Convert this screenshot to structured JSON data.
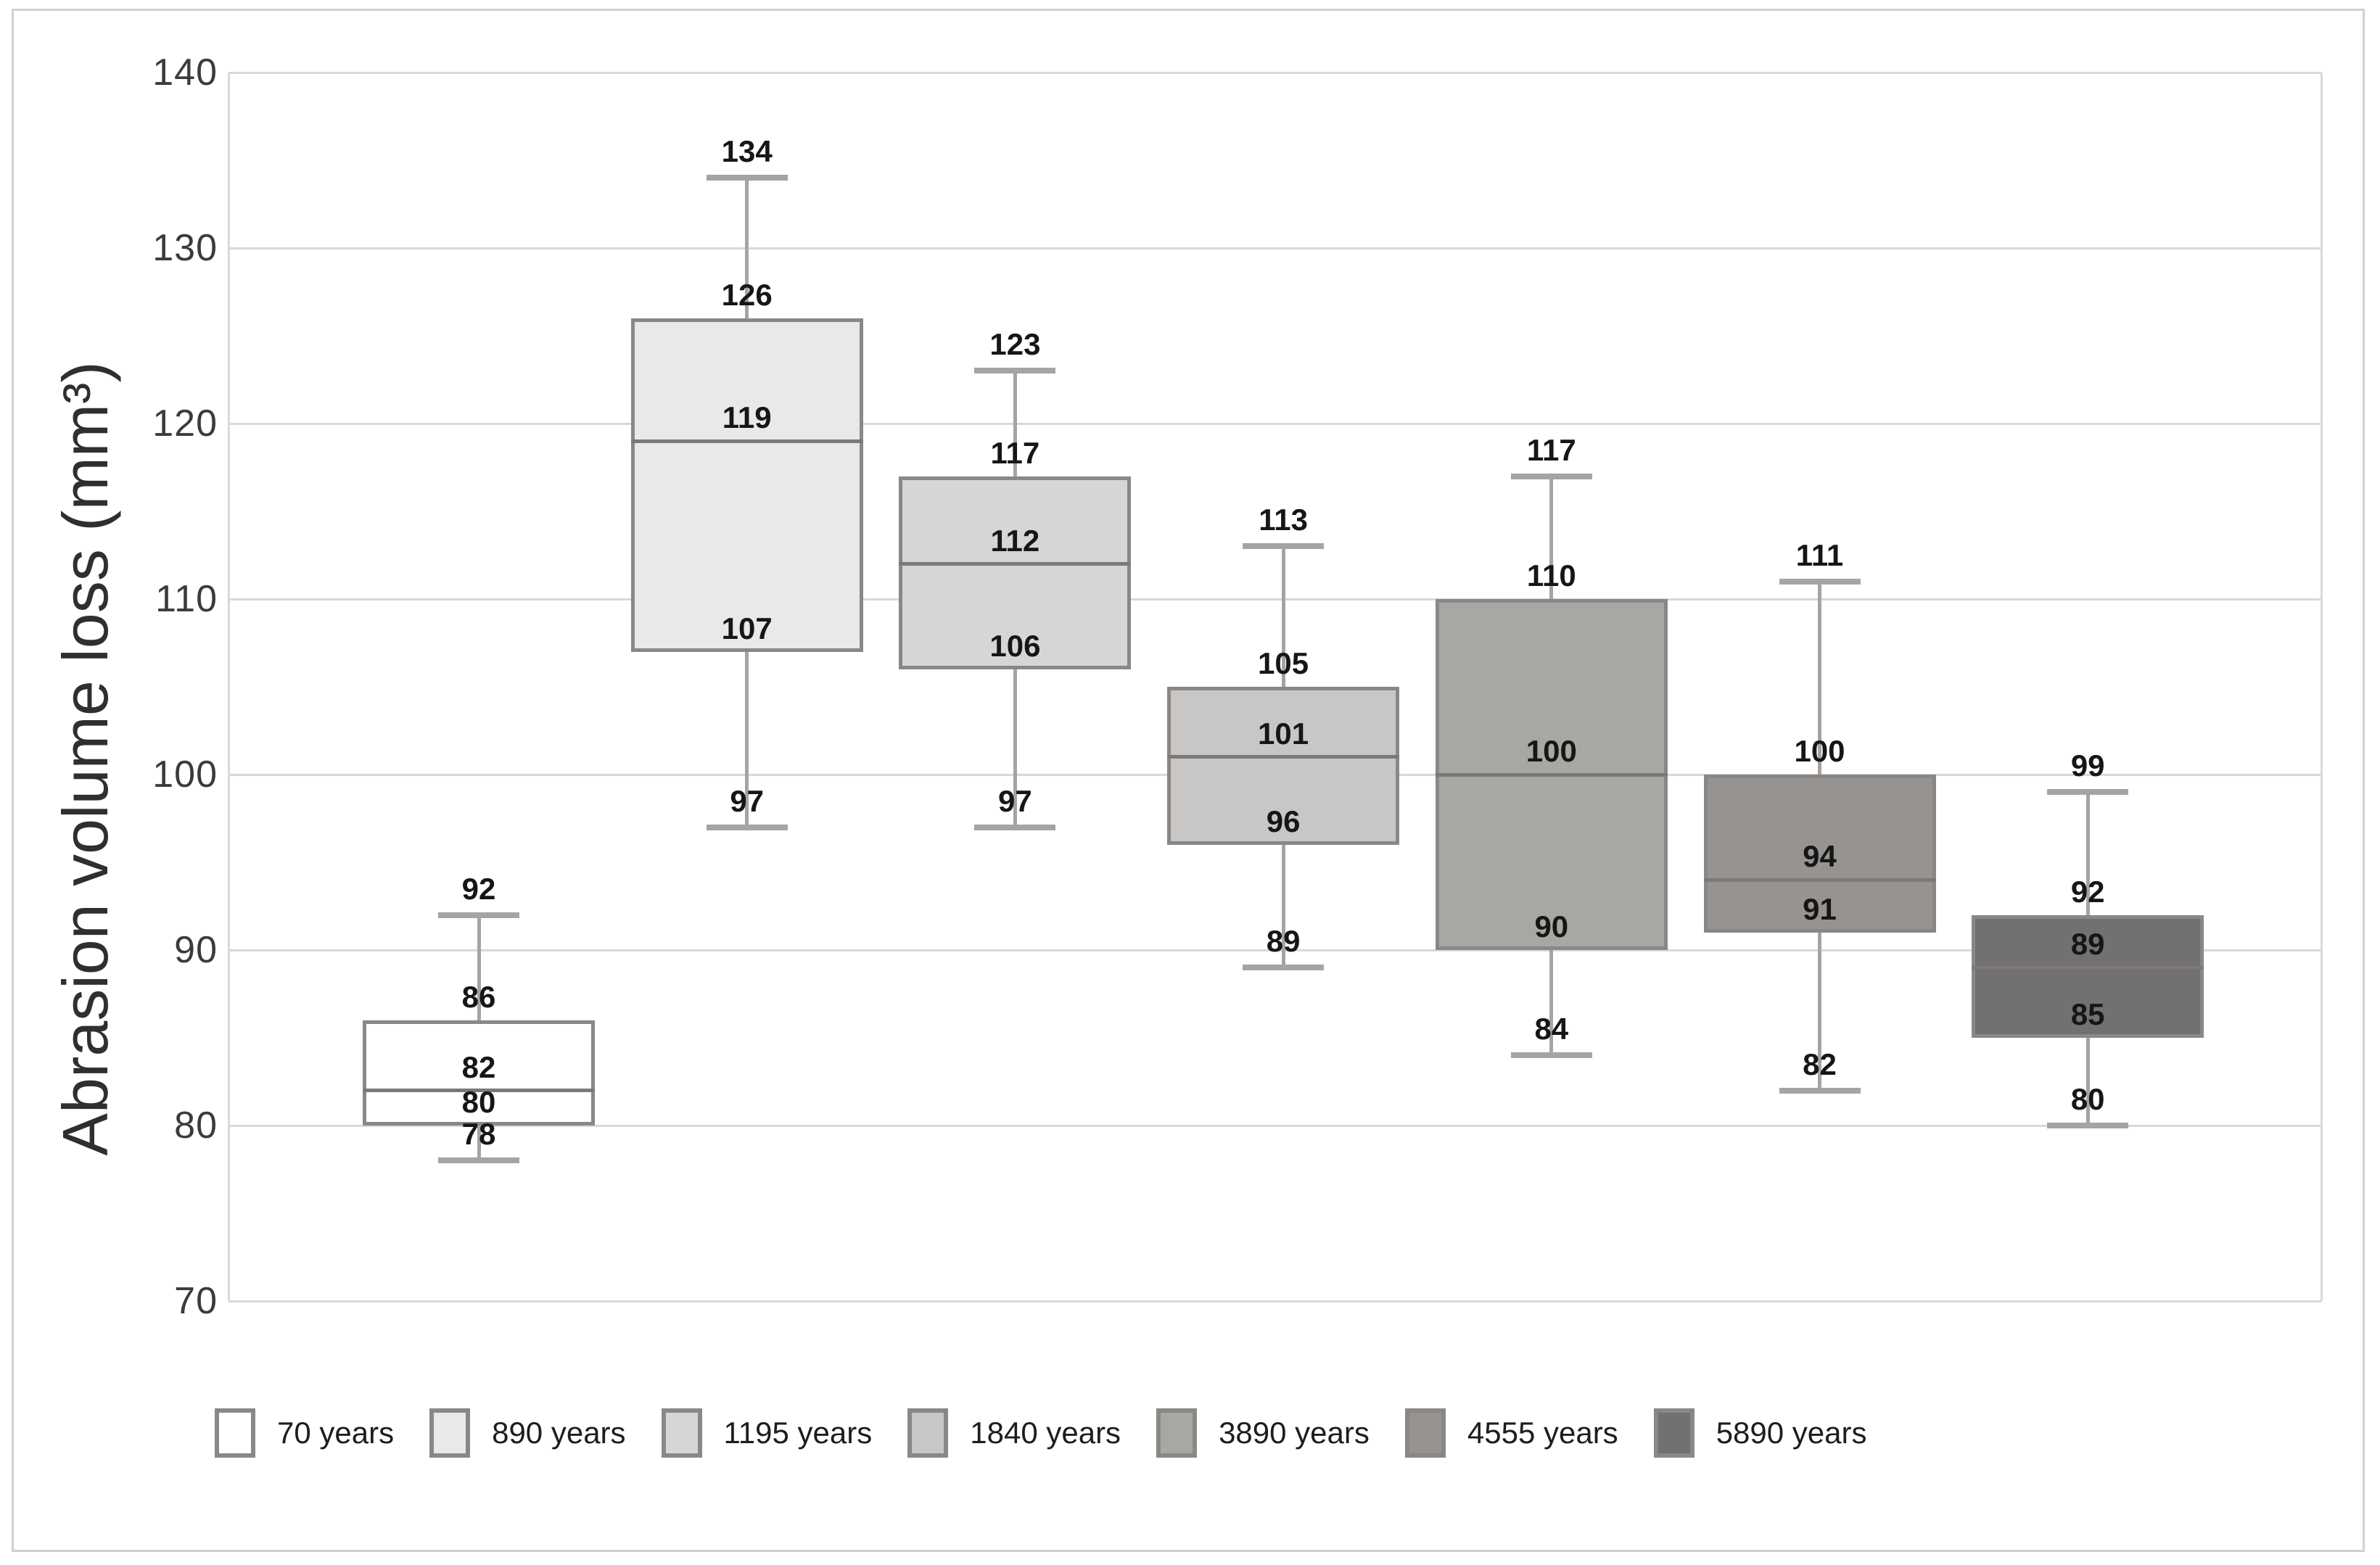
{
  "chart_data": {
    "type": "boxplot",
    "title": "",
    "ylabel": "Abrasion volume loss (mm³)",
    "xlabel": "",
    "ylim": [
      70,
      140
    ],
    "yticks": [
      140,
      130,
      120,
      110,
      100,
      90,
      80,
      70
    ],
    "grid": "horizontal",
    "legend_position": "bottom",
    "categories": [
      "70 years",
      "890 years",
      "1195 years",
      "1840 years",
      "3890 years",
      "4555 years",
      "5890 years"
    ],
    "series": [
      {
        "name": "70 years",
        "min": 78,
        "q1": 80,
        "median": 82,
        "q3": 86,
        "max": 92,
        "fill": "#ffffff"
      },
      {
        "name": "890 years",
        "min": 97,
        "q1": 107,
        "median": 119,
        "q3": 126,
        "max": 134,
        "fill": "#e9e9e7"
      },
      {
        "name": "1195 years",
        "min": 97,
        "q1": 106,
        "median": 112,
        "q3": 117,
        "max": 123,
        "fill": "#d8d6d4"
      },
      {
        "name": "1840 years",
        "min": 89,
        "q1": 96,
        "median": 101,
        "q3": 105,
        "max": 113,
        "fill": "#c9c7c5"
      },
      {
        "name": "3890 years",
        "min": 84,
        "q1": 90,
        "median": 100,
        "q3": 110,
        "max": 117,
        "fill": "#a9a7a4"
      },
      {
        "name": "4555 years",
        "min": 82,
        "q1": 91,
        "median": 94,
        "q3": 100,
        "max": 111,
        "fill": "#969391"
      },
      {
        "name": "5890 years",
        "min": 80,
        "q1": 85,
        "median": 89,
        "q3": 92,
        "max": 99,
        "fill": "#737070"
      }
    ],
    "colors": {
      "box_border": "#8a8886",
      "median_line": "#7c7a78",
      "whisker": "#a6a4a2",
      "gridline": "#d9d9d9",
      "tick_label": "#3b3b3b",
      "data_label": "#161616",
      "frame_border": "#d0d0d0",
      "background": "#ffffff"
    }
  }
}
